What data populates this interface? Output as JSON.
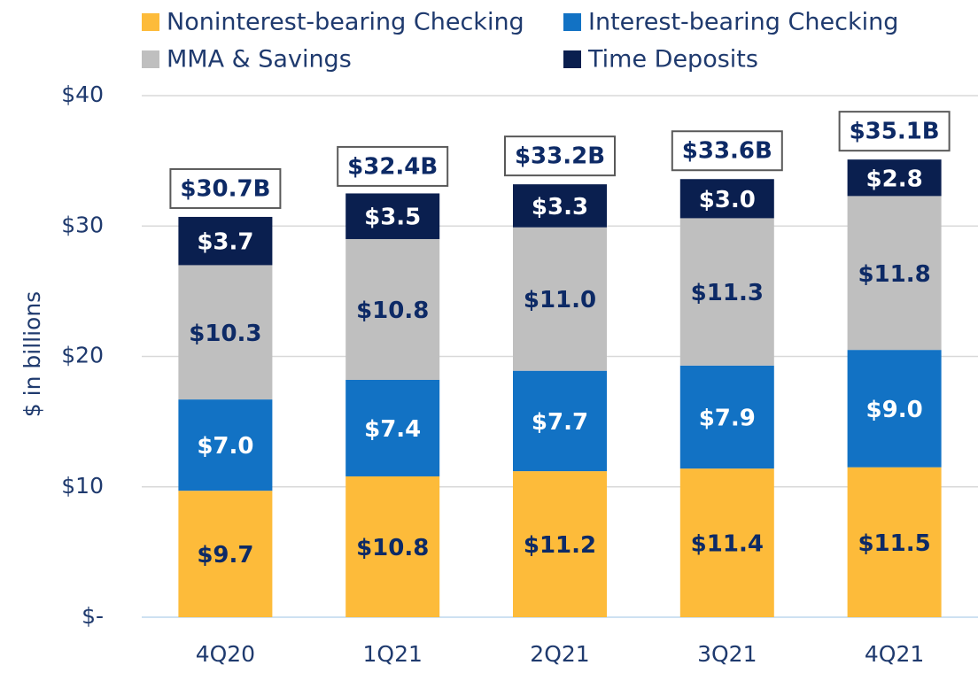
{
  "chart_data": {
    "type": "stacked_bar",
    "y_label": "$ in billions",
    "categories": [
      "4Q20",
      "1Q21",
      "2Q21",
      "3Q21",
      "4Q21"
    ],
    "series": [
      {
        "name": "Noninterest-bearing Checking",
        "color": "#fdbb3a",
        "label_color": "#0d2a66",
        "values": [
          9.7,
          10.8,
          11.2,
          11.4,
          11.5
        ],
        "value_labels": [
          "$9.7",
          "$10.8",
          "$11.2",
          "$11.4",
          "$11.5"
        ]
      },
      {
        "name": "Interest-bearing Checking",
        "color": "#1272c4",
        "label_color": "#ffffff",
        "values": [
          7.0,
          7.4,
          7.7,
          7.9,
          9.0
        ],
        "value_labels": [
          "$7.0",
          "$7.4",
          "$7.7",
          "$7.9",
          "$9.0"
        ]
      },
      {
        "name": "MMA & Savings",
        "color": "#bfbfbf",
        "label_color": "#0d2a66",
        "values": [
          10.3,
          10.8,
          11.0,
          11.3,
          11.8
        ],
        "value_labels": [
          "$10.3",
          "$10.8",
          "$11.0",
          "$11.3",
          "$11.8"
        ]
      },
      {
        "name": "Time Deposits",
        "color": "#0a1f4f",
        "label_color": "#ffffff",
        "values": [
          3.7,
          3.5,
          3.3,
          3.0,
          2.8
        ],
        "value_labels": [
          "$3.7",
          "$3.5",
          "$3.3",
          "$3.0",
          "$2.8"
        ]
      }
    ],
    "annotations": [
      {
        "text": "$30.7B",
        "value": 30.7
      },
      {
        "text": "$32.4B",
        "value": 32.4
      },
      {
        "text": "$33.2B",
        "value": 33.2
      },
      {
        "text": "$33.6B",
        "value": 33.6
      },
      {
        "text": "$35.1B",
        "value": 35.1
      }
    ],
    "ylim": [
      0,
      40
    ],
    "yticks": [
      {
        "value": 0,
        "label": "$-"
      },
      {
        "value": 10,
        "label": "$10"
      },
      {
        "value": 20,
        "label": "$20"
      },
      {
        "value": 30,
        "label": "$30"
      },
      {
        "value": 40,
        "label": "$40"
      }
    ],
    "grid": true
  }
}
